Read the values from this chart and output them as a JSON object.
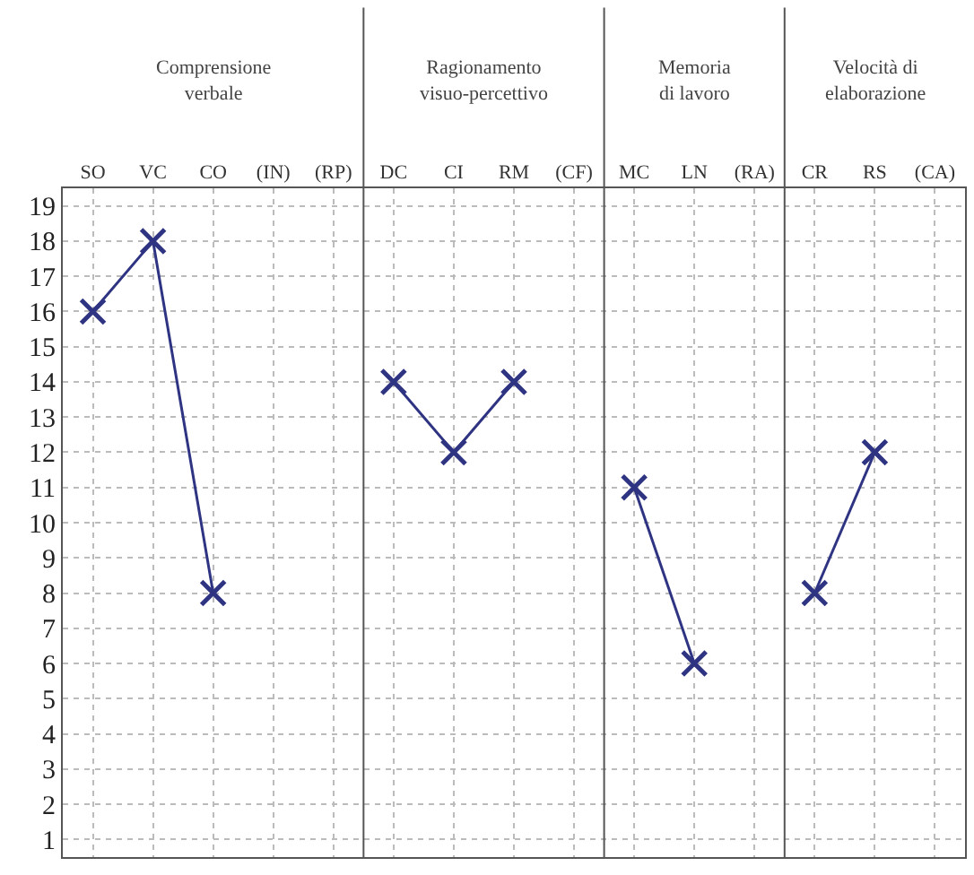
{
  "chart_data": {
    "type": "line",
    "categories": [
      "SO",
      "VC",
      "CO",
      "(IN)",
      "(RP)",
      "DC",
      "CI",
      "RM",
      "(CF)",
      "MC",
      "LN",
      "(RA)",
      "CR",
      "RS",
      "(CA)"
    ],
    "series": [
      {
        "color": "#2e3382",
        "values": [
          16,
          18,
          8,
          null,
          null,
          14,
          12,
          14,
          null,
          11,
          6,
          null,
          8,
          12,
          null
        ]
      }
    ],
    "annotations": [
      "Comprensione\nverbale",
      "Ragionamento\nvisuo-percettivo",
      "Memoria\ndi lavoro",
      "Velocità di\nelaborazione"
    ],
    "ylim": [
      0.5,
      19.5
    ],
    "yticks": [
      1,
      2,
      3,
      4,
      5,
      6,
      7,
      8,
      9,
      10,
      11,
      12,
      13,
      14,
      15,
      16,
      17,
      18,
      19
    ],
    "grid": true,
    "marker": "cross",
    "line_style": "solid",
    "legend": false
  }
}
